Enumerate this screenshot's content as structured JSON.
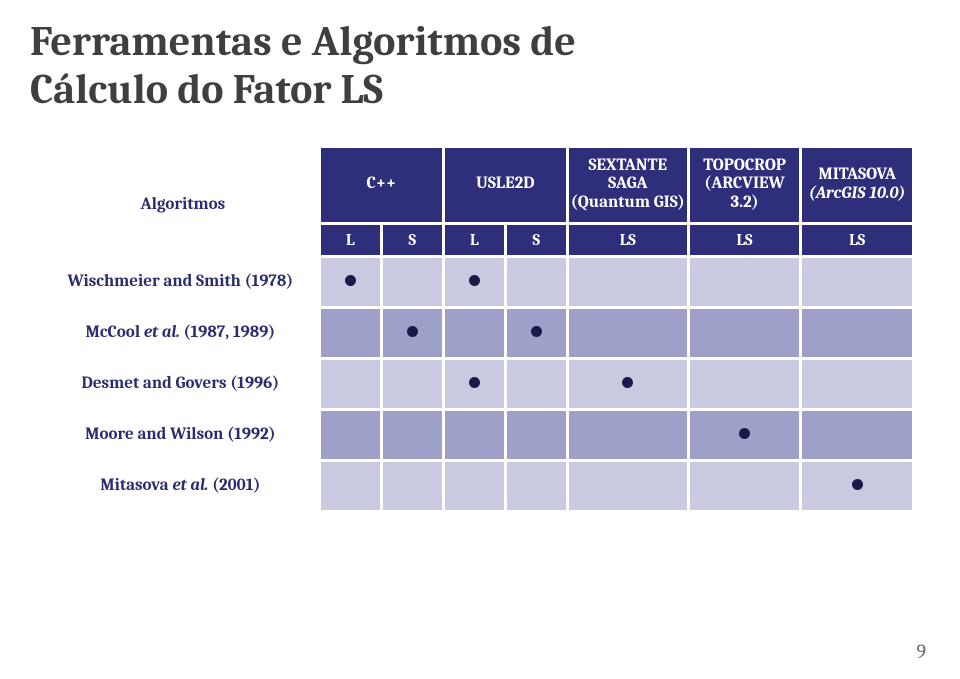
{
  "title_line1": "Ferramentas e Algoritmos de",
  "title_line2": "Cálculo do Fator LS",
  "page_number": "9",
  "columns": {
    "algoritmos": "Algoritmos",
    "cpp": "C++",
    "usle2d": "USLE2D",
    "sextante_l1": "SEXTANTE",
    "sextante_l2": "SAGA",
    "sextante_l3": "(Quantum GIS)",
    "topocrop_l1": "TOPOCROP",
    "topocrop_l2": "(ARCVIEW 3.2)",
    "mitasova_l1": "MITASOVA",
    "mitasova_l2": "(ArcGIS 10.0)"
  },
  "sub": {
    "L": "L",
    "S": "S",
    "LS": "LS"
  },
  "rows": [
    {
      "label_pre": "Wischmeier and Smith (1978)",
      "label_it": "",
      "label_post": "",
      "dots": [
        true,
        false,
        true,
        false,
        false,
        false,
        false
      ]
    },
    {
      "label_pre": "McCool ",
      "label_it": "et al.",
      "label_post": " (1987, 1989)",
      "dots": [
        false,
        true,
        false,
        true,
        false,
        false,
        false
      ]
    },
    {
      "label_pre": "Desmet and Govers (1996)",
      "label_it": "",
      "label_post": "",
      "dots": [
        false,
        false,
        true,
        false,
        true,
        false,
        false
      ]
    },
    {
      "label_pre": "Moore and Wilson (1992)",
      "label_it": "",
      "label_post": "",
      "dots": [
        false,
        false,
        false,
        false,
        false,
        true,
        false
      ]
    },
    {
      "label_pre": "Mitasova ",
      "label_it": "et al.",
      "label_post": " (2001)",
      "dots": [
        false,
        false,
        false,
        false,
        false,
        false,
        true
      ]
    }
  ],
  "colors": {
    "header_bg": "#2e2e7a",
    "header_fg": "#ffffff",
    "row_light": "#c9cae2",
    "row_dark": "#9ea0ca",
    "label_fg": "#2c2c6e",
    "dot": "#1a1a4a",
    "title_fg": "#3f3f3f"
  },
  "layout": {
    "col_widths_pct": [
      32,
      7,
      7,
      7,
      7,
      14,
      13,
      13
    ]
  }
}
